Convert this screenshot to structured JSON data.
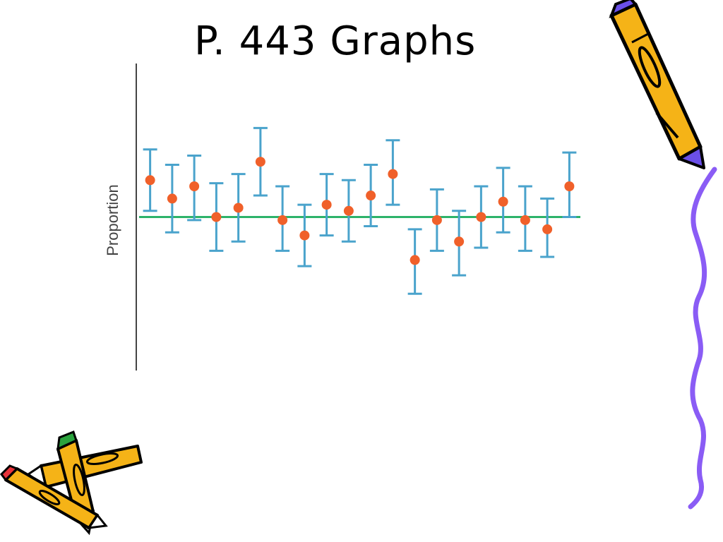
{
  "slide": {
    "title": "P. 443 Graphs"
  },
  "chart_data": {
    "type": "scatter",
    "title": "",
    "xlabel": "",
    "ylabel": "Proportion",
    "grid": false,
    "legend": "none",
    "reference_line": 0.5,
    "ylim": [
      0.0,
      1.0
    ],
    "xlim": [
      0.5,
      20.5
    ],
    "points": [
      {
        "x": 1,
        "y": 0.62,
        "low": 0.52,
        "high": 0.72
      },
      {
        "x": 2,
        "y": 0.56,
        "low": 0.45,
        "high": 0.67
      },
      {
        "x": 3,
        "y": 0.6,
        "low": 0.49,
        "high": 0.7
      },
      {
        "x": 4,
        "y": 0.5,
        "low": 0.39,
        "high": 0.61
      },
      {
        "x": 5,
        "y": 0.53,
        "low": 0.42,
        "high": 0.64
      },
      {
        "x": 6,
        "y": 0.68,
        "low": 0.57,
        "high": 0.79
      },
      {
        "x": 7,
        "y": 0.49,
        "low": 0.39,
        "high": 0.6
      },
      {
        "x": 8,
        "y": 0.44,
        "low": 0.34,
        "high": 0.54
      },
      {
        "x": 9,
        "y": 0.54,
        "low": 0.44,
        "high": 0.64
      },
      {
        "x": 10,
        "y": 0.52,
        "low": 0.42,
        "high": 0.62
      },
      {
        "x": 11,
        "y": 0.57,
        "low": 0.47,
        "high": 0.67
      },
      {
        "x": 12,
        "y": 0.64,
        "low": 0.54,
        "high": 0.75
      },
      {
        "x": 13,
        "y": 0.36,
        "low": 0.25,
        "high": 0.46
      },
      {
        "x": 14,
        "y": 0.49,
        "low": 0.39,
        "high": 0.59
      },
      {
        "x": 15,
        "y": 0.42,
        "low": 0.31,
        "high": 0.52
      },
      {
        "x": 16,
        "y": 0.5,
        "low": 0.4,
        "high": 0.6
      },
      {
        "x": 17,
        "y": 0.55,
        "low": 0.45,
        "high": 0.66
      },
      {
        "x": 18,
        "y": 0.49,
        "low": 0.39,
        "high": 0.6
      },
      {
        "x": 19,
        "y": 0.46,
        "low": 0.37,
        "high": 0.56
      },
      {
        "x": 20,
        "y": 0.6,
        "low": 0.5,
        "high": 0.71
      }
    ],
    "colors": {
      "point": "#f0602a",
      "errorbar": "#4aa3cc",
      "reference_line": "#2db36a",
      "axis": "#444444"
    }
  },
  "decorations": {
    "icons": [
      "pencil-icon",
      "pencil-icon",
      "pencil-icon",
      "wavy-border-icon"
    ],
    "colors": {
      "pencil_body": "#f5b317",
      "pencil_outline": "#000000",
      "pencil_tip": "#6a4fe8",
      "border": "#8a5cf5",
      "eraser_red": "#e8333a",
      "eraser_green": "#2aa33d"
    }
  }
}
